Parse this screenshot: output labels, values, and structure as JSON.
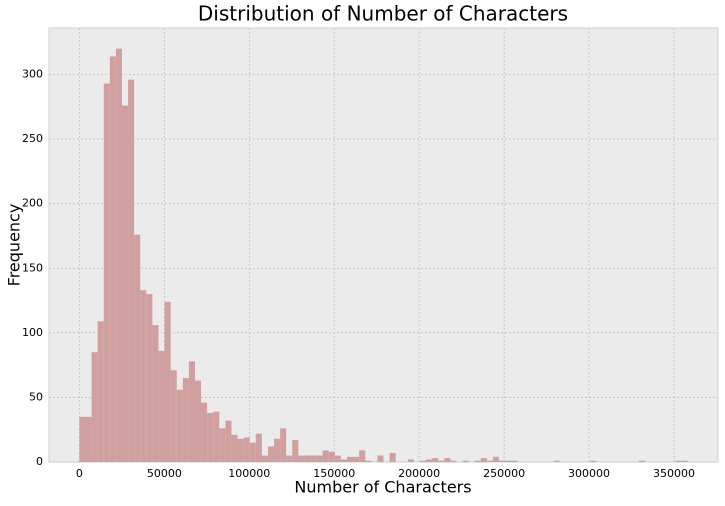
{
  "chart_data": {
    "type": "histogram",
    "title": "Distribution of Number of Characters",
    "x_label": "Number of Characters",
    "y_label": "Frequency",
    "bins": [
      0,
      3580,
      7160,
      10740,
      14320,
      17900,
      21480,
      25060,
      28640,
      32220,
      35800,
      39380,
      42960,
      46540,
      50120,
      53700,
      57280,
      60860,
      64440,
      68020,
      71600,
      75180,
      78760,
      82340,
      85920,
      89500,
      93080,
      96660,
      100240,
      103820,
      107400,
      110980,
      114560,
      118140,
      121720,
      125300,
      128880,
      132460,
      136040,
      139620,
      143200,
      146780,
      150360,
      153940,
      157520,
      161100,
      164680,
      168260,
      171840,
      175420,
      179000,
      182580,
      186160,
      189740,
      193320,
      196900,
      200480,
      204060,
      207640,
      211220,
      214800,
      218380,
      221960,
      225540,
      229120,
      232700,
      236280,
      239860,
      243440,
      247020,
      250600,
      254180,
      257760,
      261340,
      264920,
      268500,
      272080,
      275660,
      279240,
      282820,
      286400,
      289980,
      293560,
      297140,
      300720,
      304300,
      307880,
      311460,
      315040,
      318620,
      322200,
      325780,
      329360,
      332940,
      336520,
      340100,
      343680,
      347260,
      350840,
      354420,
      358000
    ],
    "counts": [
      35,
      35,
      85,
      109,
      293,
      314,
      320,
      276,
      296,
      176,
      133,
      130,
      106,
      86,
      124,
      71,
      56,
      65,
      78,
      63,
      46,
      38,
      39,
      26,
      32,
      21,
      18,
      19,
      15,
      22,
      5,
      12,
      18,
      26,
      5,
      17,
      5,
      5,
      5,
      5,
      9,
      8,
      5,
      2,
      4,
      4,
      9,
      1,
      0,
      5,
      0,
      7,
      0,
      0,
      2,
      0,
      1,
      2,
      3,
      1,
      3,
      1,
      0,
      1,
      0,
      1,
      3,
      1,
      4,
      1,
      1,
      1,
      0,
      0,
      0,
      0,
      0,
      0,
      1,
      0,
      0,
      0,
      0,
      0,
      1,
      0,
      0,
      0,
      0,
      0,
      0,
      0,
      1,
      0,
      0,
      0,
      0,
      0,
      1,
      1
    ],
    "color": "#d0a0a0",
    "xlim": [
      -17900,
      375900
    ],
    "xticks": [
      0,
      50000,
      100000,
      150000,
      200000,
      250000,
      300000,
      350000
    ],
    "ylim": [
      0,
      336
    ],
    "yticks": [
      0,
      50,
      100,
      150,
      200,
      250,
      300
    ],
    "grid": true
  }
}
